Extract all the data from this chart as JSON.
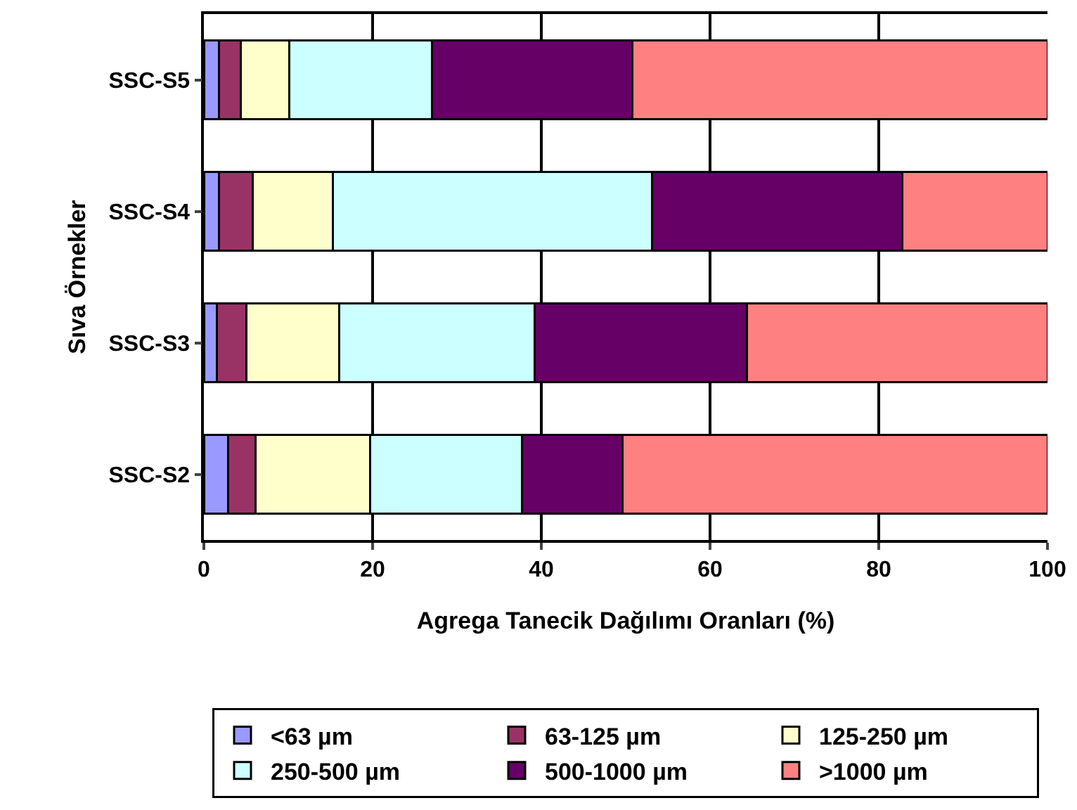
{
  "chart_data": {
    "type": "bar",
    "orientation": "horizontal",
    "stacked": true,
    "xlabel": "Agrega Tanecik Dağılımı Oranları (%)",
    "ylabel": "Sıva Örnekler",
    "categories": [
      "SSC-S5",
      "SSC-S4",
      "SSC-S3",
      "SSC-S2"
    ],
    "xlim": [
      0,
      100
    ],
    "xticks": [
      0,
      20,
      40,
      60,
      80,
      100
    ],
    "grid": "x",
    "legend": "bottom",
    "series": [
      {
        "name": "<63 µm",
        "color": "#9999ff",
        "values": [
          1.8,
          1.8,
          1.5,
          2.9
        ]
      },
      {
        "name": "63-125 µm",
        "color": "#993366",
        "values": [
          2.6,
          4.0,
          3.5,
          3.2
        ]
      },
      {
        "name": "125-250 µm",
        "color": "#ffffcc",
        "values": [
          5.7,
          9.5,
          11.0,
          13.6
        ]
      },
      {
        "name": "250-500 µm",
        "color": "#ccffff",
        "values": [
          16.9,
          37.8,
          23.2,
          18.0
        ]
      },
      {
        "name": "500-1000 µm",
        "color": "#660066",
        "values": [
          23.8,
          29.7,
          25.2,
          11.9
        ]
      },
      {
        "name": ">1000 µm",
        "color": "#ff8080",
        "values": [
          49.2,
          17.2,
          35.6,
          50.4
        ]
      }
    ]
  }
}
